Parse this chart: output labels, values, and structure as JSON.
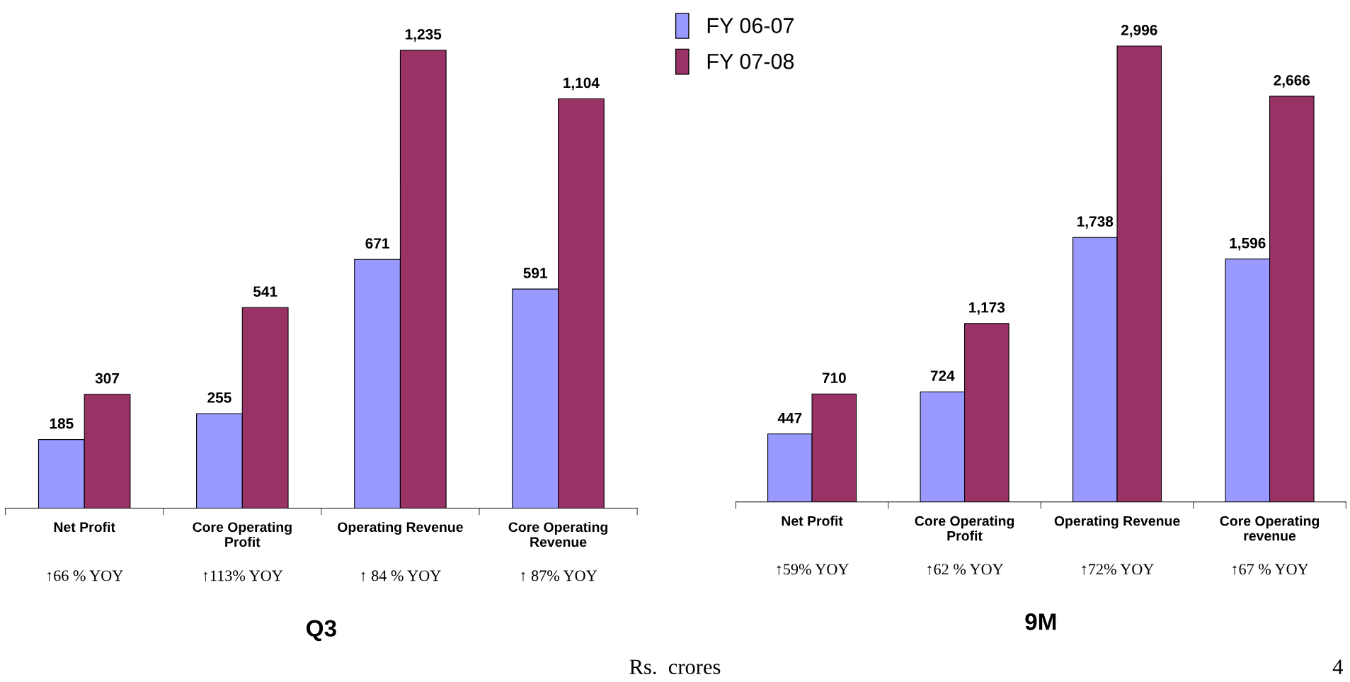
{
  "chart_data": [
    {
      "type": "bar",
      "title": "Q3",
      "categories": [
        "Net Profit",
        "Core Operating\nProfit",
        "Operating Revenue",
        "Core Operating\nRevenue"
      ],
      "series": [
        {
          "name": "FY 06-07",
          "color": "#9999ff",
          "values": [
            185,
            255,
            671,
            591
          ],
          "value_labels": [
            "185",
            "255",
            "671",
            "591"
          ]
        },
        {
          "name": "FY 07-08",
          "color": "#993366",
          "values": [
            307,
            541,
            1235,
            1104
          ],
          "value_labels": [
            "307",
            "541",
            "1,235",
            "1,104"
          ]
        }
      ],
      "legend": "top right",
      "annotations": [
        "↑66 % YOY",
        "↑113% YOY",
        "↑ 84 % YOY",
        "↑ 87% YOY"
      ]
    },
    {
      "type": "bar",
      "title": "9M",
      "categories": [
        "Net Profit",
        "Core Operating\nProfit",
        "Operating Revenue",
        "Core Operating\nrevenue"
      ],
      "series": [
        {
          "color": "#9999ff",
          "values": [
            447,
            724,
            1738,
            1596
          ],
          "value_labels": [
            "447",
            "724",
            "1,738",
            "1,596"
          ]
        },
        {
          "color": "#993366",
          "values": [
            710,
            1173,
            2996,
            2666
          ],
          "value_labels": [
            "710",
            "1,173",
            "2,996",
            "2,666"
          ]
        }
      ],
      "annotations": [
        "↑59% YOY",
        "↑62 % YOY",
        "↑72% YOY",
        "↑67 % YOY",
        "Rs.  crores",
        "4"
      ]
    }
  ]
}
